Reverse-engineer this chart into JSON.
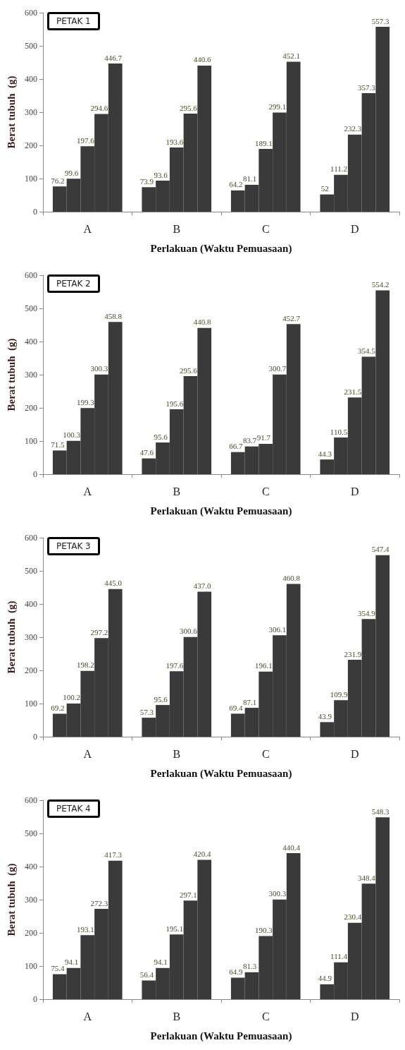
{
  "chart_data": [
    {
      "type": "bar",
      "title": "PETAK 1",
      "xlabel": "Perlakuan (Waktu Pemuasaan)",
      "ylabel": "Berat tubuh  (g)",
      "categories": [
        "A",
        "B",
        "C",
        "D"
      ],
      "ylim": [
        0,
        600
      ],
      "yticks": [
        0,
        100,
        200,
        300,
        400,
        500,
        600
      ],
      "series": [
        {
          "color": "#3a3a3a",
          "values": [
            76.2,
            73.9,
            64.2,
            52
          ],
          "value_labels": [
            "76.2",
            "73.9",
            "64.2",
            "52"
          ]
        },
        {
          "color": "#3a3a3a",
          "values": [
            99.6,
            93.6,
            81.1,
            111.2
          ],
          "value_labels": [
            "99.6",
            "93.6",
            "81.1",
            "111.2"
          ]
        },
        {
          "color": "#3a3a3a",
          "values": [
            197.6,
            193.6,
            189.1,
            232.3
          ],
          "value_labels": [
            "197.6",
            "193.6",
            "189.1",
            "232.3"
          ]
        },
        {
          "color": "#3a3a3a",
          "values": [
            294.6,
            295.6,
            299.1,
            357.3
          ],
          "value_labels": [
            "294.6",
            "295.6",
            "299.1",
            "357.3"
          ]
        },
        {
          "color": "#3a3a3a",
          "values": [
            446.7,
            440.6,
            452.1,
            557.3
          ],
          "value_labels": [
            "446.7",
            "440.6",
            "452.1",
            "557.3"
          ]
        }
      ]
    },
    {
      "type": "bar",
      "title": "PETAK 2",
      "xlabel": "Perlakuan (Waktu Pemuasaan)",
      "ylabel": "Berat tubuh  (g)",
      "categories": [
        "A",
        "B",
        "C",
        "D"
      ],
      "ylim": [
        0,
        600
      ],
      "yticks": [
        0,
        100,
        200,
        300,
        400,
        500,
        600
      ],
      "series": [
        {
          "color": "#3a3a3a",
          "values": [
            71.5,
            47.6,
            66.7,
            44.3
          ],
          "value_labels": [
            "71.5",
            "47.6",
            "66.7",
            "44.3"
          ]
        },
        {
          "color": "#3a3a3a",
          "values": [
            100.3,
            95.6,
            83.7,
            110.5
          ],
          "value_labels": [
            "100.3",
            "95.6",
            "83.7",
            "110.5"
          ]
        },
        {
          "color": "#3a3a3a",
          "values": [
            199.3,
            195.6,
            91.7,
            231.5
          ],
          "value_labels": [
            "199.3",
            "195.6",
            "91.7",
            "231.5"
          ]
        },
        {
          "color": "#3a3a3a",
          "values": [
            300.3,
            295.6,
            300.7,
            354.5
          ],
          "value_labels": [
            "300.3",
            "295.6",
            "300.7",
            "354.5"
          ]
        },
        {
          "color": "#3a3a3a",
          "values": [
            458.8,
            440.8,
            452.7,
            554.2
          ],
          "value_labels": [
            "458.8",
            "440.8",
            "452.7",
            "554.2"
          ]
        }
      ]
    },
    {
      "type": "bar",
      "title": "PETAK 3",
      "xlabel": "Perlakuan (Waktu Pemuasaan)",
      "ylabel": "Berat tubuh  (g)",
      "categories": [
        "A",
        "B",
        "C",
        "D"
      ],
      "ylim": [
        0,
        600
      ],
      "yticks": [
        0,
        100,
        200,
        300,
        400,
        500,
        600
      ],
      "series": [
        {
          "color": "#3a3a3a",
          "values": [
            69.2,
            57.3,
            69.4,
            43.9
          ],
          "value_labels": [
            "69.2",
            "57.3",
            "69.4",
            "43.9"
          ]
        },
        {
          "color": "#3a3a3a",
          "values": [
            100.2,
            95.6,
            87.1,
            109.9
          ],
          "value_labels": [
            "100.2",
            "95.6",
            "87.1",
            "109.9"
          ]
        },
        {
          "color": "#3a3a3a",
          "values": [
            198.2,
            197.6,
            196.1,
            231.9
          ],
          "value_labels": [
            "198.2",
            "197.6",
            "196.1",
            "231.9"
          ]
        },
        {
          "color": "#3a3a3a",
          "values": [
            297.2,
            300.6,
            306.1,
            354.9
          ],
          "value_labels": [
            "297.2",
            "300.6",
            "306.1",
            "354.9"
          ]
        },
        {
          "color": "#3a3a3a",
          "values": [
            445.0,
            437.0,
            460.8,
            547.4
          ],
          "value_labels": [
            "445.0",
            "437.0",
            "460.8",
            "547.4"
          ]
        }
      ]
    },
    {
      "type": "bar",
      "title": "PETAK 4",
      "xlabel": "Perlakuan (Waktu Pemuasaan)",
      "ylabel": "Berat tubuh  (g)",
      "categories": [
        "A",
        "B",
        "C",
        "D"
      ],
      "ylim": [
        0,
        600
      ],
      "yticks": [
        0,
        100,
        200,
        300,
        400,
        500,
        600
      ],
      "series": [
        {
          "color": "#3a3a3a",
          "values": [
            75.4,
            56.4,
            64.9,
            44.9
          ],
          "value_labels": [
            "75.4",
            "56.4",
            "64.9",
            "44.9"
          ]
        },
        {
          "color": "#3a3a3a",
          "values": [
            94.1,
            94.1,
            81.3,
            111.4
          ],
          "value_labels": [
            "94.1",
            "94.1",
            "81.3",
            "111.4"
          ]
        },
        {
          "color": "#3a3a3a",
          "values": [
            193.1,
            195.1,
            190.3,
            230.4
          ],
          "value_labels": [
            "193.1",
            "195.1",
            "190.3",
            "230.4"
          ]
        },
        {
          "color": "#3a3a3a",
          "values": [
            272.3,
            297.1,
            300.3,
            348.4
          ],
          "value_labels": [
            "272.3",
            "297.1",
            "300.3",
            "348.4"
          ]
        },
        {
          "color": "#3a3a3a",
          "values": [
            417.3,
            420.4,
            440.4,
            548.3
          ],
          "value_labels": [
            "417.3",
            "420.4",
            "440.4",
            "548.3"
          ]
        }
      ]
    }
  ]
}
